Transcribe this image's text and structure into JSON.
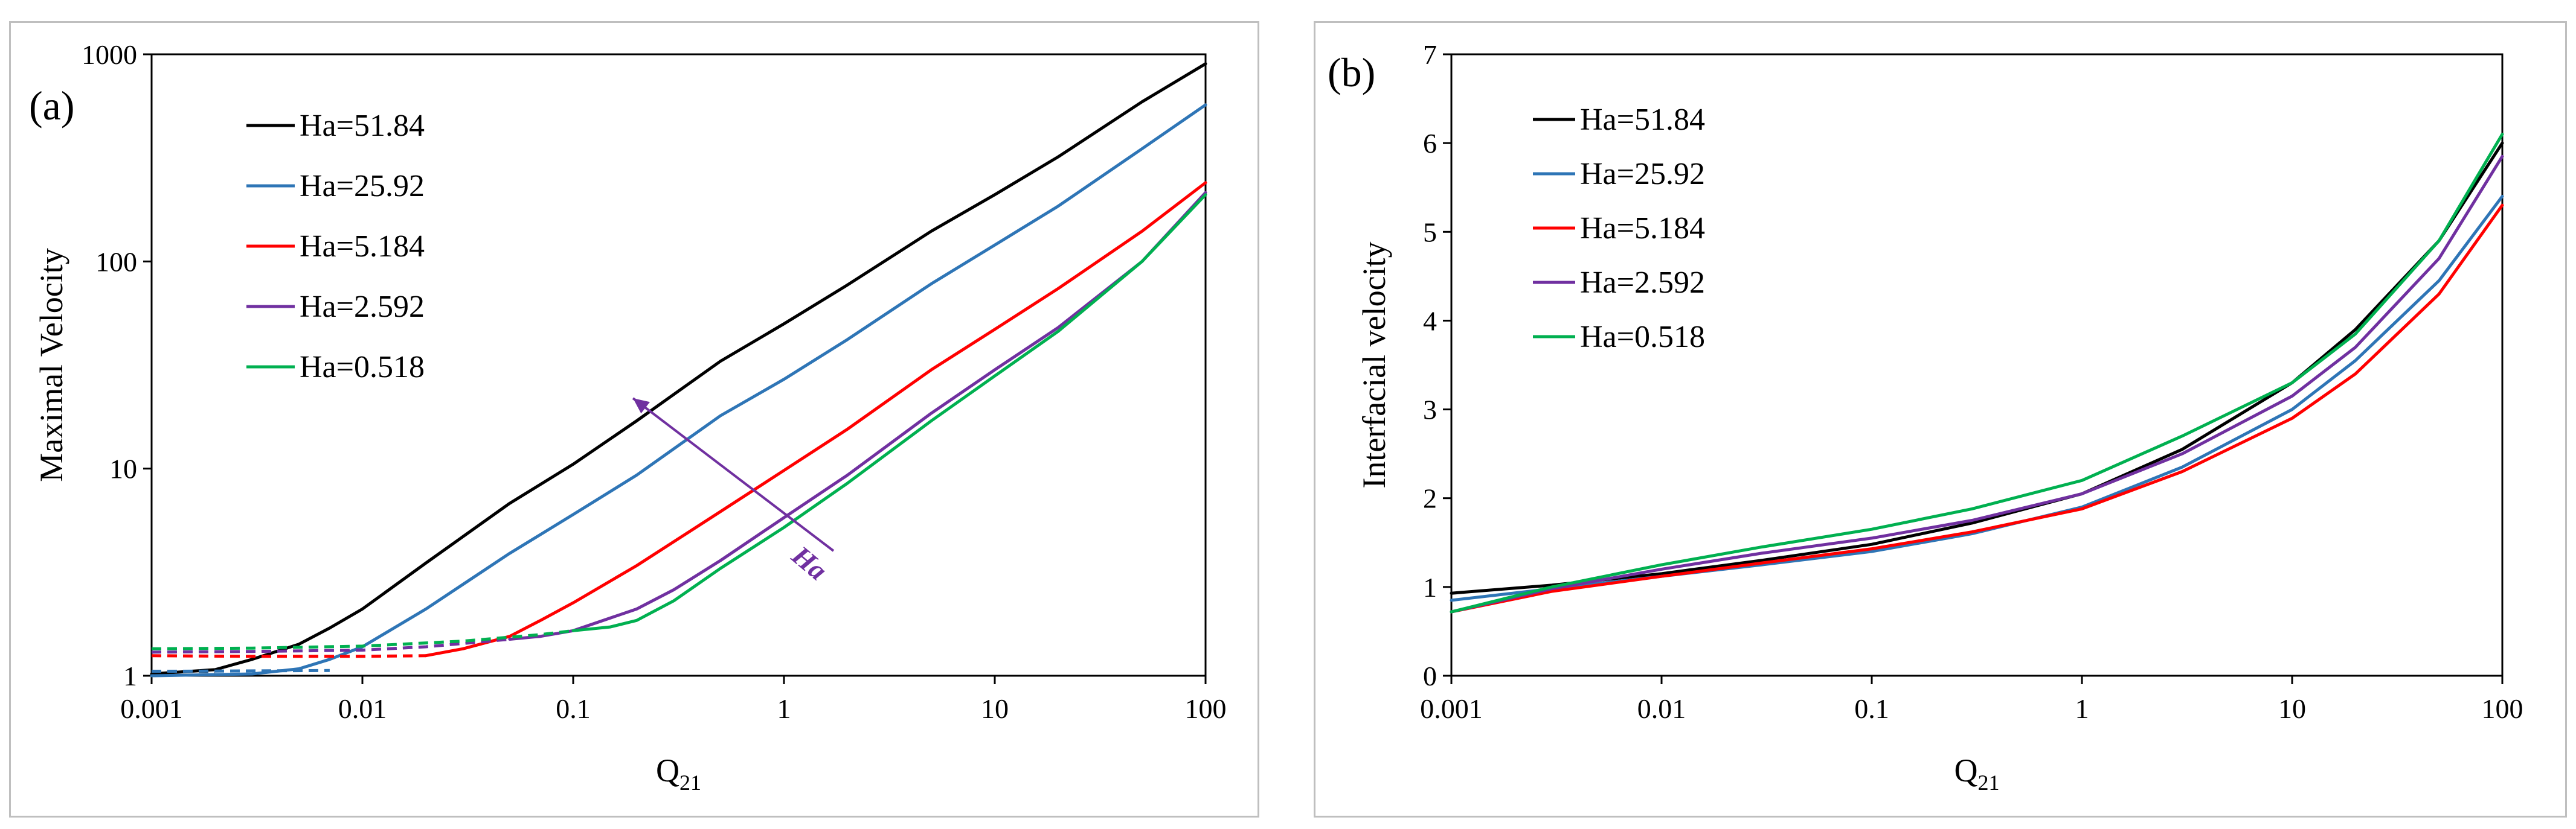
{
  "chart_data": [
    {
      "type": "line",
      "panel_label": "(a)",
      "xlabel": "Q",
      "xlabel_sub": "21",
      "ylabel": "Maximal Velocity",
      "xscale": "log",
      "yscale": "log",
      "xlim": [
        0.001,
        100
      ],
      "ylim": [
        1,
        1000
      ],
      "x_ticks": [
        "0.001",
        "0.01",
        "0.1",
        "1",
        "10",
        "100"
      ],
      "y_ticks": [
        "1",
        "10",
        "100",
        "1000"
      ],
      "legend_position": "top-left",
      "annotation": {
        "text": "Ha",
        "color": "#7030a0",
        "note": "arrow indicating increasing Ha"
      },
      "series": [
        {
          "name": "Ha=51.84",
          "color": "#000000",
          "x": [
            0.001,
            0.002,
            0.003,
            0.005,
            0.007,
            0.01,
            0.02,
            0.05,
            0.1,
            0.2,
            0.5,
            1,
            2,
            5,
            10,
            20,
            50,
            100
          ],
          "y": [
            1.02,
            1.07,
            1.2,
            1.42,
            1.7,
            2.1,
            3.5,
            6.8,
            10.5,
            17,
            33,
            50,
            77,
            140,
            210,
            320,
            590,
            900
          ],
          "dashed_x": [
            0.001,
            0.002
          ],
          "dashed_y": [
            1.05,
            1.05
          ]
        },
        {
          "name": "Ha=25.92",
          "color": "#2e75b6",
          "x": [
            0.001,
            0.003,
            0.005,
            0.007,
            0.01,
            0.02,
            0.05,
            0.1,
            0.2,
            0.5,
            1,
            2,
            5,
            10,
            20,
            50,
            100
          ],
          "y": [
            1.0,
            1.02,
            1.08,
            1.2,
            1.38,
            2.1,
            3.9,
            6.0,
            9.3,
            18,
            27,
            42,
            78,
            120,
            185,
            350,
            570
          ],
          "dashed_x": [
            0.001,
            0.007
          ],
          "dashed_y": [
            1.05,
            1.06
          ]
        },
        {
          "name": "Ha=5.184",
          "color": "#ff0000",
          "x": [
            0.02,
            0.03,
            0.05,
            0.07,
            0.1,
            0.2,
            0.5,
            1,
            2,
            5,
            10,
            20,
            50,
            100
          ],
          "y": [
            1.25,
            1.35,
            1.55,
            1.85,
            2.25,
            3.4,
            6.2,
            9.8,
            15.5,
            30,
            47,
            74,
            140,
            240
          ],
          "dashed_x": [
            0.001,
            0.003,
            0.01,
            0.02
          ],
          "dashed_y": [
            1.25,
            1.24,
            1.24,
            1.25
          ]
        },
        {
          "name": "Ha=2.592",
          "color": "#7030a0",
          "x": [
            0.05,
            0.07,
            0.1,
            0.2,
            0.3,
            0.5,
            1,
            2,
            5,
            10,
            20,
            50,
            100
          ],
          "y": [
            1.5,
            1.55,
            1.65,
            2.1,
            2.6,
            3.6,
            5.8,
            9.3,
            18.5,
            30,
            48,
            100,
            215
          ],
          "dashed_x": [
            0.001,
            0.003,
            0.01,
            0.02,
            0.05
          ],
          "dashed_y": [
            1.3,
            1.31,
            1.33,
            1.38,
            1.5
          ]
        },
        {
          "name": "Ha=0.518",
          "color": "#00b050",
          "x": [
            0.1,
            0.15,
            0.2,
            0.3,
            0.5,
            1,
            2,
            5,
            10,
            20,
            50,
            100
          ],
          "y": [
            1.65,
            1.72,
            1.85,
            2.3,
            3.3,
            5.2,
            8.5,
            17,
            28,
            46,
            100,
            210
          ],
          "dashed_x": [
            0.001,
            0.003,
            0.01,
            0.03,
            0.07,
            0.1
          ],
          "dashed_y": [
            1.35,
            1.36,
            1.39,
            1.47,
            1.58,
            1.65
          ]
        }
      ]
    },
    {
      "type": "line",
      "panel_label": "(b)",
      "xlabel": "Q",
      "xlabel_sub": "21",
      "ylabel": "Interfacial velocity",
      "xscale": "log",
      "yscale": "linear",
      "xlim": [
        0.001,
        100
      ],
      "ylim": [
        0,
        7
      ],
      "x_ticks": [
        "0.001",
        "0.01",
        "0.1",
        "1",
        "10",
        "100"
      ],
      "y_ticks": [
        "0",
        "1",
        "2",
        "3",
        "4",
        "5",
        "6",
        "7"
      ],
      "legend_position": "top-left",
      "series": [
        {
          "name": "Ha=51.84",
          "color": "#000000",
          "x": [
            0.001,
            0.003,
            0.01,
            0.03,
            0.1,
            0.3,
            1,
            3,
            10,
            20,
            50,
            100
          ],
          "y": [
            0.93,
            1.02,
            1.15,
            1.3,
            1.48,
            1.72,
            2.05,
            2.55,
            3.3,
            3.9,
            4.9,
            6.0
          ]
        },
        {
          "name": "Ha=25.92",
          "color": "#2e75b6",
          "x": [
            0.001,
            0.003,
            0.01,
            0.03,
            0.1,
            0.3,
            1,
            3,
            10,
            20,
            50,
            100
          ],
          "y": [
            0.85,
            0.98,
            1.12,
            1.25,
            1.4,
            1.6,
            1.9,
            2.35,
            3.0,
            3.55,
            4.45,
            5.4
          ]
        },
        {
          "name": "Ha=5.184",
          "color": "#ff0000",
          "x": [
            0.001,
            0.003,
            0.01,
            0.03,
            0.1,
            0.3,
            1,
            3,
            10,
            20,
            50,
            100
          ],
          "y": [
            0.72,
            0.95,
            1.12,
            1.27,
            1.43,
            1.62,
            1.88,
            2.3,
            2.9,
            3.4,
            4.3,
            5.3
          ]
        },
        {
          "name": "Ha=2.592",
          "color": "#7030a0",
          "x": [
            0.001,
            0.003,
            0.01,
            0.03,
            0.1,
            0.3,
            1,
            3,
            10,
            20,
            50,
            100
          ],
          "y": [
            0.72,
            0.98,
            1.2,
            1.38,
            1.55,
            1.75,
            2.05,
            2.5,
            3.15,
            3.7,
            4.7,
            5.85
          ]
        },
        {
          "name": "Ha=0.518",
          "color": "#00b050",
          "x": [
            0.001,
            0.003,
            0.01,
            0.03,
            0.1,
            0.3,
            1,
            3,
            10,
            20,
            50,
            100
          ],
          "y": [
            0.72,
            1.0,
            1.25,
            1.45,
            1.65,
            1.88,
            2.2,
            2.7,
            3.3,
            3.85,
            4.9,
            6.1
          ]
        }
      ]
    }
  ]
}
